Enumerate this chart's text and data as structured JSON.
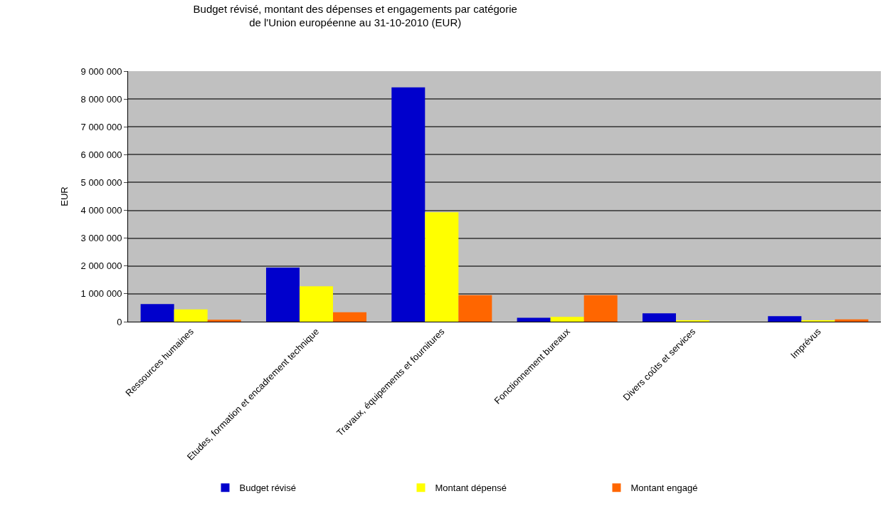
{
  "chart_data": {
    "type": "bar",
    "title": "Budget révisé, montant des dépenses et engagements par catégorie\nde l'Union européenne au 31-10-2010 (EUR)",
    "ylabel": "EUR",
    "categories": [
      "Ressources humaines",
      "Etudes, formation et encadrement technique",
      "Travaux, équipements et fournitures",
      "Fonctionnement bureaux",
      "Divers coûts et services",
      "Imprévus"
    ],
    "series": [
      {
        "name": "Budget révisé",
        "color": "#0000cc",
        "values": [
          630000,
          1940000,
          8420000,
          140000,
          300000,
          200000
        ]
      },
      {
        "name": "Montant dépensé",
        "color": "#ffff00",
        "values": [
          440000,
          1270000,
          3930000,
          170000,
          30000,
          30000
        ]
      },
      {
        "name": "Montant engagé",
        "color": "#ff6600",
        "values": [
          70000,
          340000,
          950000,
          950000,
          0,
          85000
        ]
      }
    ],
    "ylim": [
      0,
      9000000
    ],
    "yticks": [
      {
        "value": 0,
        "label": "0"
      },
      {
        "value": 1000000,
        "label": "1 000 000"
      },
      {
        "value": 2000000,
        "label": "2 000 000"
      },
      {
        "value": 3000000,
        "label": "3 000 000"
      },
      {
        "value": 4000000,
        "label": "4 000 000"
      },
      {
        "value": 5000000,
        "label": "5 000 000"
      },
      {
        "value": 6000000,
        "label": "6 000 000"
      },
      {
        "value": 7000000,
        "label": "7 000 000"
      },
      {
        "value": 8000000,
        "label": "8 000 000"
      },
      {
        "value": 9000000,
        "label": "9 000 000"
      }
    ],
    "grid": "y",
    "legend": "bottom"
  }
}
